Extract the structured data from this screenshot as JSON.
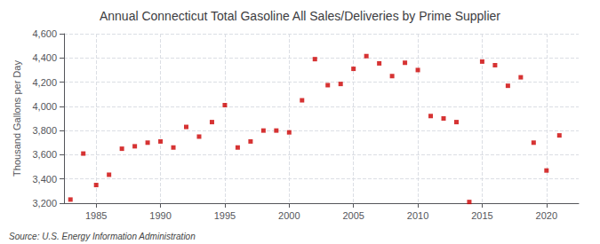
{
  "chart_data": {
    "type": "scatter",
    "title": "Annual Connecticut Total Gasoline All Sales/Deliveries by Prime Supplier",
    "ylabel": "Thousand Gallons per Day",
    "annotations": [
      "Source: U.S. Energy Information Administration"
    ],
    "x": [
      1983,
      1984,
      1985,
      1986,
      1987,
      1988,
      1989,
      1990,
      1991,
      1992,
      1993,
      1994,
      1995,
      1996,
      1997,
      1998,
      1999,
      2000,
      2001,
      2002,
      2003,
      2004,
      2005,
      2006,
      2007,
      2008,
      2009,
      2010,
      2011,
      2012,
      2013,
      2014,
      2015,
      2016,
      2017,
      2018,
      2019,
      2020,
      2021
    ],
    "values": [
      3230,
      3610,
      3350,
      3435,
      3650,
      3670,
      3700,
      3710,
      3660,
      3830,
      3750,
      3870,
      4010,
      3660,
      3710,
      3800,
      3800,
      3785,
      4050,
      4390,
      4175,
      4185,
      4310,
      4415,
      4355,
      4250,
      4360,
      4300,
      3920,
      3900,
      3870,
      3210,
      4370,
      4340,
      4170,
      4240,
      3700,
      3470,
      3760
    ],
    "color": "#cc0000",
    "marker": "square",
    "xlim": [
      1982.5,
      2022.5
    ],
    "xticks": [
      1985,
      1990,
      1995,
      2000,
      2005,
      2010,
      2015,
      2020
    ],
    "ylim": [
      3200,
      4600
    ],
    "yticks": [
      {
        "value": 3200,
        "label": "3,200"
      },
      {
        "value": 3400,
        "label": "3,400"
      },
      {
        "value": 3600,
        "label": "3,600"
      },
      {
        "value": 3800,
        "label": "3,800"
      },
      {
        "value": 4000,
        "label": "4,000"
      },
      {
        "value": 4200,
        "label": "4,200"
      },
      {
        "value": 4400,
        "label": "4,400"
      },
      {
        "value": 4600,
        "label": "4,600"
      }
    ],
    "grid": true
  }
}
